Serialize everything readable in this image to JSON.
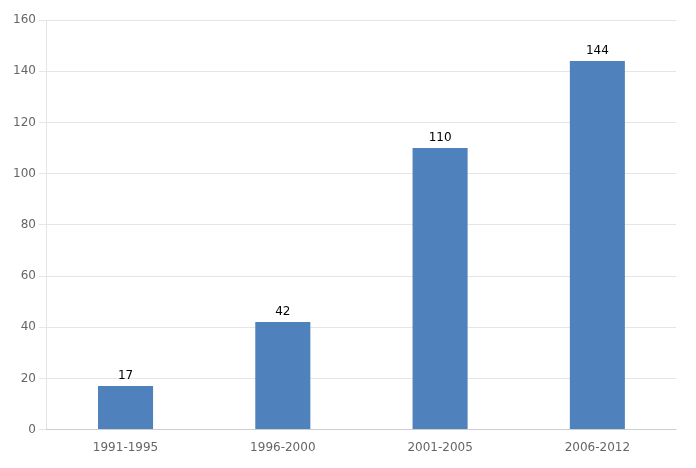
{
  "chart_data": {
    "type": "bar",
    "categories": [
      "1991-1995",
      "1996-2000",
      "2001-2005",
      "2006-2012"
    ],
    "values": [
      17,
      42,
      110,
      144
    ],
    "color": "#4f81bd",
    "ylim": [
      0,
      160
    ],
    "yticks": [
      0,
      20,
      40,
      60,
      80,
      100,
      120,
      140,
      160
    ],
    "grid": true,
    "data_labels": true
  }
}
